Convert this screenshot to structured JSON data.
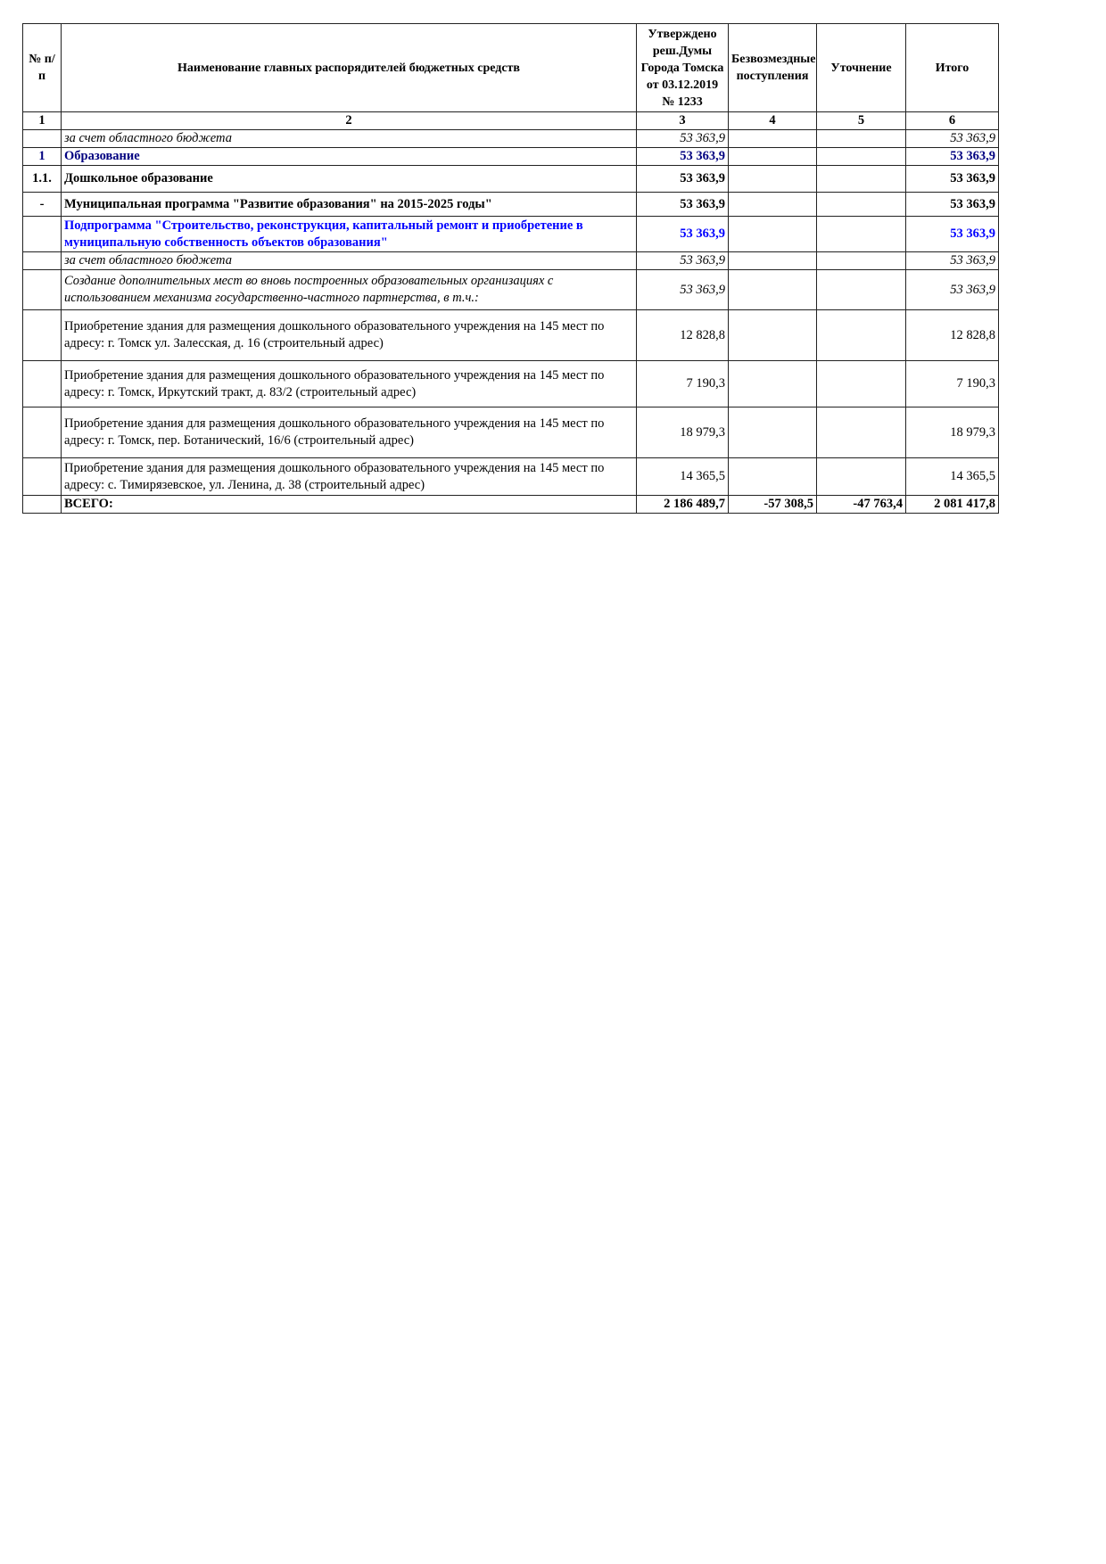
{
  "header": {
    "col1": "№ п/п",
    "col2": "Наименование главных распорядителей бюджетных средств",
    "col3": "Утверждено реш.Думы Города Томска от 03.12.2019 № 1233",
    "col4": "Безвозмездные поступления",
    "col5": "Уточнение",
    "col6": "Итого"
  },
  "column_numbers": [
    "1",
    "2",
    "3",
    "4",
    "5",
    "6"
  ],
  "colors": {
    "navy": "#000080",
    "blue": "#0000ff"
  },
  "rows": [
    {
      "num": "",
      "name": "за счет областного бюджета",
      "approved": "53 363,9",
      "free": "",
      "adjust": "",
      "total": "53 363,9",
      "style": "italic"
    },
    {
      "num": "1",
      "name": "Образование",
      "approved": "53 363,9",
      "free": "",
      "adjust": "",
      "total": "53 363,9",
      "style": "bold-navy"
    },
    {
      "num": "1.1.",
      "name": "Дошкольное образование",
      "approved": "53 363,9",
      "free": "",
      "adjust": "",
      "total": "53 363,9",
      "style": "bold"
    },
    {
      "num": "-",
      "name": "Муниципальная программа \"Развитие образования\" на 2015-2025 годы\"",
      "approved": "53 363,9",
      "free": "",
      "adjust": "",
      "total": "53 363,9",
      "style": "bold"
    },
    {
      "num": "",
      "name": "Подпрограмма \"Строительство, реконструкция, капитальный ремонт и приобретение в муниципальную собственность объектов образования\"",
      "approved": "53 363,9",
      "free": "",
      "adjust": "",
      "total": "53 363,9",
      "style": "bold-blue"
    },
    {
      "num": "",
      "name": "за счет областного бюджета",
      "approved": "53 363,9",
      "free": "",
      "adjust": "",
      "total": "53 363,9",
      "style": "italic"
    },
    {
      "num": "",
      "name": "Создание дополнительных мест во вновь построенных образовательных организациях с использованием механизма государственно-частного партнерства, в т.ч.:",
      "approved": "53 363,9",
      "free": "",
      "adjust": "",
      "total": "53 363,9",
      "style": "italic"
    },
    {
      "num": "",
      "name": "Приобретение здания для размещения дошкольного образовательного учреждения на 145 мест по адресу: г. Томск ул. Залесская, д. 16 (строительный адрес)",
      "approved": "12 828,8",
      "free": "",
      "adjust": "",
      "total": "12 828,8",
      "style": "normal"
    },
    {
      "num": "",
      "name": "Приобретение здания для размещения дошкольного образовательного учреждения на 145 мест по адресу: г. Томск, Иркутский тракт, д. 83/2 (строительный адрес)",
      "approved": "7 190,3",
      "free": "",
      "adjust": "",
      "total": "7 190,3",
      "style": "normal"
    },
    {
      "num": "",
      "name": "Приобретение здания для размещения дошкольного образовательного учреждения на 145 мест по адресу: г. Томск, пер. Ботанический, 16/6 (строительный адрес)",
      "approved": "18 979,3",
      "free": "",
      "adjust": "",
      "total": "18 979,3",
      "style": "normal"
    },
    {
      "num": "",
      "name": "Приобретение здания для размещения дошкольного образовательного учреждения на 145 мест по адресу: с. Тимирязевское, ул. Ленина, д. 38 (строительный адрес)",
      "approved": "14 365,5",
      "free": "",
      "adjust": "",
      "total": "14 365,5",
      "style": "normal"
    }
  ],
  "total": {
    "label": "ВСЕГО:",
    "approved": "2 186 489,7",
    "free": "-57 308,5",
    "adjust": "-47 763,4",
    "total": "2 081 417,8"
  }
}
